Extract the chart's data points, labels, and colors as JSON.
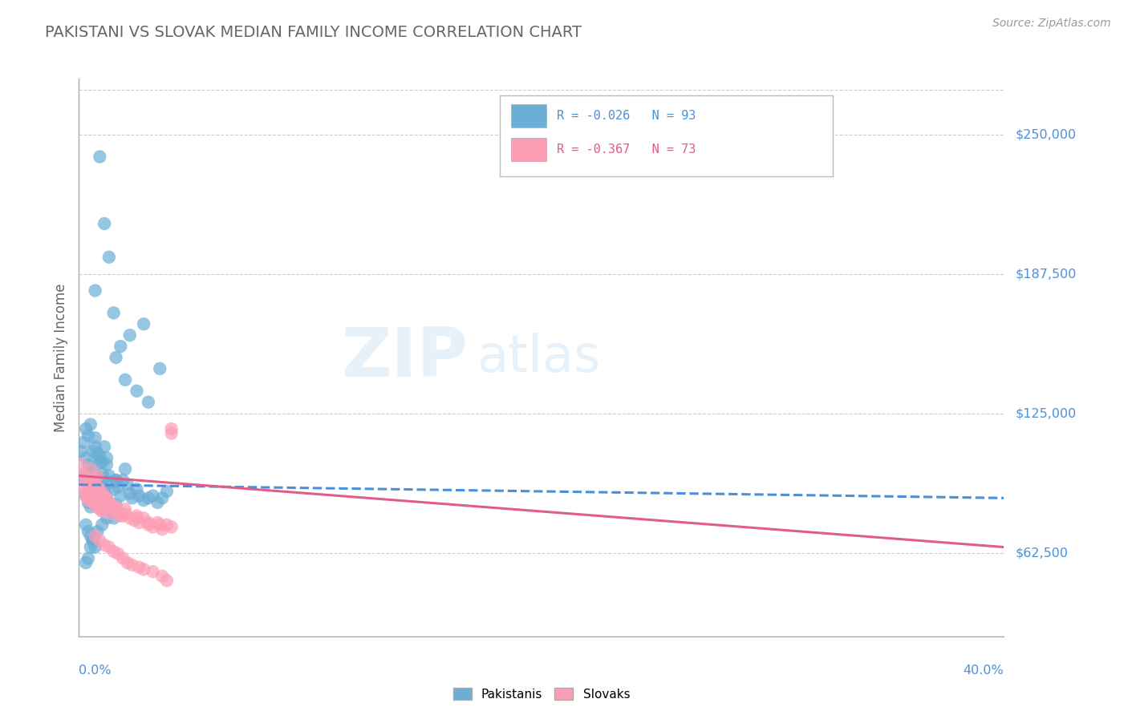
{
  "title": "PAKISTANI VS SLOVAK MEDIAN FAMILY INCOME CORRELATION CHART",
  "source": "Source: ZipAtlas.com",
  "ylabel": "Median Family Income",
  "ytick_labels": [
    "$62,500",
    "$125,000",
    "$187,500",
    "$250,000"
  ],
  "ytick_values": [
    62500,
    125000,
    187500,
    250000
  ],
  "ymin": 25000,
  "ymax": 275000,
  "xmin": 0.0,
  "xmax": 0.4,
  "legend_blue_label": "R = -0.026   N = 93",
  "legend_pink_label": "R = -0.367   N = 73",
  "blue_color": "#6baed6",
  "pink_color": "#fc9eb5",
  "blue_line_color": "#4a90d9",
  "pink_line_color": "#e05c8a",
  "pakistani_scatter_x": [
    0.001,
    0.002,
    0.002,
    0.003,
    0.003,
    0.003,
    0.004,
    0.004,
    0.004,
    0.005,
    0.005,
    0.005,
    0.005,
    0.006,
    0.006,
    0.006,
    0.007,
    0.007,
    0.007,
    0.007,
    0.008,
    0.008,
    0.008,
    0.009,
    0.009,
    0.009,
    0.01,
    0.01,
    0.01,
    0.011,
    0.011,
    0.012,
    0.012,
    0.013,
    0.013,
    0.014,
    0.014,
    0.015,
    0.016,
    0.016,
    0.017,
    0.018,
    0.019,
    0.02,
    0.021,
    0.022,
    0.023,
    0.025,
    0.026,
    0.028,
    0.03,
    0.032,
    0.034,
    0.036,
    0.038,
    0.003,
    0.004,
    0.005,
    0.006,
    0.007,
    0.008,
    0.009,
    0.01,
    0.011,
    0.012,
    0.003,
    0.004,
    0.005,
    0.006,
    0.007,
    0.016,
    0.02,
    0.025,
    0.03,
    0.035,
    0.015,
    0.01,
    0.008,
    0.006,
    0.005,
    0.004,
    0.003,
    0.007,
    0.009,
    0.011,
    0.013,
    0.015,
    0.018,
    0.022,
    0.028,
    0.014,
    0.012,
    0.016
  ],
  "pakistani_scatter_y": [
    108000,
    112000,
    95000,
    105000,
    98000,
    88000,
    102000,
    95000,
    85000,
    100000,
    96000,
    90000,
    83000,
    98000,
    94000,
    87000,
    110000,
    96000,
    92000,
    84000,
    105000,
    97000,
    89000,
    103000,
    95000,
    86000,
    98000,
    92000,
    85000,
    96000,
    90000,
    102000,
    88000,
    97000,
    85000,
    94000,
    83000,
    91000,
    95000,
    84000,
    92000,
    88000,
    95000,
    100000,
    93000,
    89000,
    87000,
    91000,
    88000,
    86000,
    87000,
    88000,
    85000,
    87000,
    90000,
    118000,
    115000,
    120000,
    108000,
    114000,
    107000,
    106000,
    103000,
    110000,
    105000,
    75000,
    72000,
    70000,
    68000,
    65000,
    150000,
    140000,
    135000,
    130000,
    145000,
    78000,
    75000,
    72000,
    68000,
    65000,
    60000,
    58000,
    180000,
    240000,
    210000,
    195000,
    170000,
    155000,
    160000,
    165000,
    82000,
    78000,
    95000
  ],
  "slovak_scatter_x": [
    0.001,
    0.002,
    0.002,
    0.003,
    0.003,
    0.004,
    0.004,
    0.005,
    0.005,
    0.006,
    0.006,
    0.007,
    0.007,
    0.008,
    0.008,
    0.009,
    0.009,
    0.01,
    0.01,
    0.011,
    0.012,
    0.013,
    0.014,
    0.015,
    0.016,
    0.017,
    0.018,
    0.019,
    0.02,
    0.022,
    0.024,
    0.025,
    0.026,
    0.028,
    0.03,
    0.032,
    0.034,
    0.036,
    0.038,
    0.04,
    0.003,
    0.004,
    0.005,
    0.006,
    0.007,
    0.008,
    0.009,
    0.01,
    0.012,
    0.014,
    0.016,
    0.018,
    0.02,
    0.025,
    0.03,
    0.035,
    0.04,
    0.007,
    0.009,
    0.011,
    0.013,
    0.015,
    0.017,
    0.019,
    0.021,
    0.023,
    0.026,
    0.028,
    0.032,
    0.036,
    0.038,
    0.04,
    0.005
  ],
  "slovak_scatter_y": [
    102000,
    98000,
    92000,
    96000,
    88000,
    94000,
    86000,
    100000,
    88000,
    96000,
    85000,
    93000,
    84000,
    97000,
    83000,
    91000,
    82000,
    89000,
    81000,
    88000,
    87000,
    85000,
    84000,
    82000,
    83000,
    81000,
    80000,
    79000,
    82000,
    78000,
    77000,
    79000,
    76000,
    78000,
    75000,
    74000,
    76000,
    73000,
    75000,
    116000,
    90000,
    88000,
    92000,
    86000,
    88000,
    84000,
    86000,
    82000,
    84000,
    80000,
    82000,
    79000,
    80000,
    78000,
    76000,
    75000,
    74000,
    70000,
    68000,
    66000,
    65000,
    63000,
    62000,
    60000,
    58000,
    57000,
    56000,
    55000,
    54000,
    52000,
    50000,
    118000,
    95000
  ],
  "blue_trend_x": [
    0.0,
    0.4
  ],
  "blue_trend_y": [
    93000,
    87000
  ],
  "pink_trend_x": [
    0.0,
    0.4
  ],
  "pink_trend_y": [
    97000,
    65000
  ],
  "grid_color": "#cccccc",
  "background_color": "#ffffff"
}
